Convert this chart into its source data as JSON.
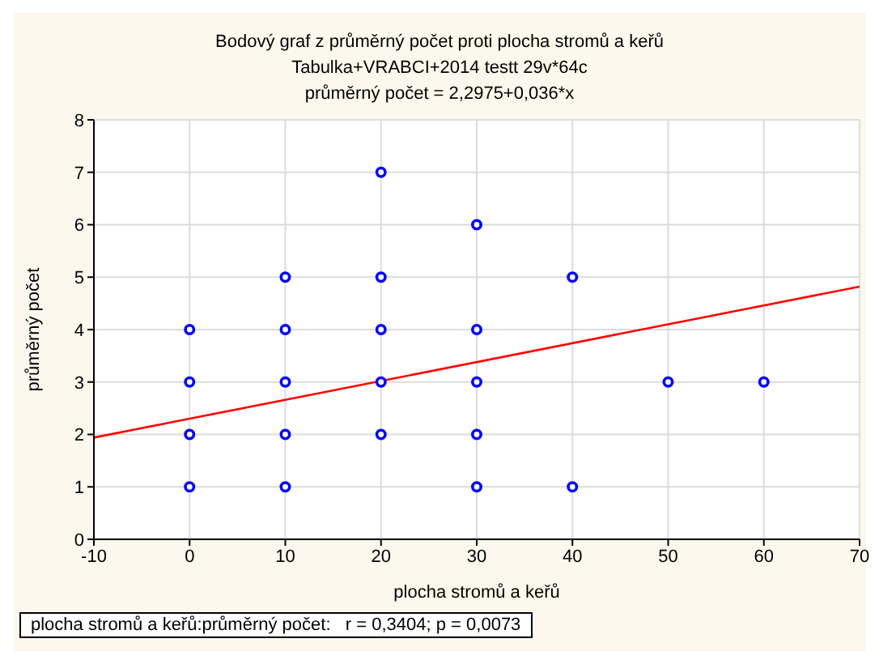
{
  "chart_data": {
    "type": "scatter",
    "title": "Bodový graf z průměrný počet proti plocha stromů a keřů",
    "subtitle": "Tabulka+VRABCI+2014 testt 29v*64c",
    "xlabel": "plocha stromů a keřů",
    "ylabel": "průměrný počet",
    "annotations": [
      "průměrný počet = 2,2975+0,036*x",
      "plocha stromů a keřů:průměrný počet:   r = 0,3404; p = 0,0073"
    ],
    "series": [
      {
        "color": "#0000ff",
        "marker": "circle",
        "x": [
          0,
          0,
          0,
          0,
          10,
          10,
          10,
          10,
          10,
          20,
          20,
          20,
          20,
          20,
          30,
          30,
          30,
          30,
          30,
          40,
          40,
          50,
          60
        ],
        "values": [
          1,
          2,
          3,
          4,
          1,
          2,
          3,
          4,
          5,
          2,
          3,
          4,
          5,
          7,
          1,
          2,
          3,
          4,
          6,
          1,
          5,
          3,
          3
        ]
      },
      {
        "type": "line",
        "marker": "none",
        "color": "#ff0000",
        "x": [
          -10,
          70
        ],
        "values": [
          1.94,
          4.82
        ]
      }
    ],
    "xlim": [
      -10,
      70
    ],
    "xticks": [
      -10,
      0,
      10,
      20,
      30,
      40,
      50,
      60,
      70
    ],
    "ylim": [
      0,
      8
    ],
    "yticks": [
      0,
      1,
      2,
      3,
      4,
      5,
      6,
      7,
      8
    ],
    "grid": true,
    "line_style": "solid"
  }
}
